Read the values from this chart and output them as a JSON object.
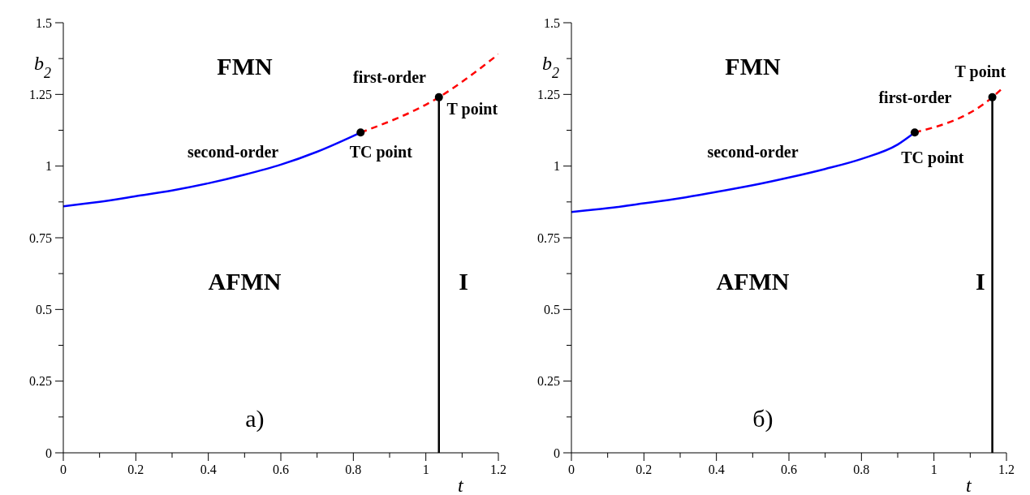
{
  "chart_data": [
    {
      "type": "line",
      "xlabel": "t",
      "ylabel": "b$_{2}$",
      "xlim": [
        0,
        1.2
      ],
      "ylim": [
        0,
        1.5
      ],
      "xticks": [
        0,
        {
          "value": 0.1,
          "label": null
        },
        0.2,
        {
          "value": 0.3,
          "label": null
        },
        0.4,
        {
          "value": 0.5,
          "label": null
        },
        0.6,
        {
          "value": 0.7,
          "label": null
        },
        0.8,
        {
          "value": 0.9,
          "label": null
        },
        1,
        {
          "value": 1.1,
          "label": null
        },
        1.2
      ],
      "yticks": [
        0,
        {
          "value": 0.125,
          "label": null
        },
        0.25,
        {
          "value": 0.375,
          "label": null
        },
        0.5,
        {
          "value": 0.625,
          "label": null
        },
        0.75,
        {
          "value": 0.875,
          "label": null
        },
        1,
        {
          "value": 1.125,
          "label": null
        },
        1.25,
        {
          "value": 1.375,
          "label": null
        },
        1.5
      ],
      "grid": false,
      "series": [
        {
          "color": "#0000ff",
          "line_style": "solid",
          "x": [
            0,
            0.1,
            0.2,
            0.3,
            0.4,
            0.5,
            0.6,
            0.7,
            0.82
          ],
          "values": [
            0.86,
            0.875,
            0.895,
            0.915,
            0.94,
            0.97,
            1.005,
            1.05,
            1.117
          ]
        },
        {
          "color": "#ff0000",
          "line_style": "dashed",
          "x": [
            0.82,
            1.036,
            1.2
          ],
          "values": [
            1.117,
            1.24,
            1.39
          ]
        },
        {
          "color": "#000000",
          "line_style": "solid",
          "x": [
            1.036,
            1.036
          ],
          "values": [
            0,
            1.24
          ]
        },
        {
          "type": "scatter",
          "color": "#000000",
          "marker": "circle",
          "x": [
            0.82,
            1.036
          ],
          "values": [
            1.117,
            1.24
          ]
        }
      ],
      "annotations": [
        "FMN",
        "AFMN",
        "I",
        "second-order",
        "first-order",
        "TC point",
        "T point",
        "а)"
      ]
    },
    {
      "type": "line",
      "xlabel": "t",
      "ylabel": "b$_{2}$",
      "xlim": [
        0,
        1.2
      ],
      "ylim": [
        0,
        1.5
      ],
      "xticks": [
        0,
        {
          "value": 0.1,
          "label": null
        },
        0.2,
        {
          "value": 0.3,
          "label": null
        },
        0.4,
        {
          "value": 0.5,
          "label": null
        },
        0.6,
        {
          "value": 0.7,
          "label": null
        },
        0.8,
        {
          "value": 0.9,
          "label": null
        },
        1,
        {
          "value": 1.1,
          "label": null
        },
        1.2
      ],
      "yticks": [
        0,
        {
          "value": 0.125,
          "label": null
        },
        0.25,
        {
          "value": 0.375,
          "label": null
        },
        0.5,
        {
          "value": 0.625,
          "label": null
        },
        0.75,
        {
          "value": 0.875,
          "label": null
        },
        1,
        {
          "value": 1.125,
          "label": null
        },
        1.25,
        {
          "value": 1.375,
          "label": null
        },
        1.5
      ],
      "grid": false,
      "series": [
        {
          "color": "#0000ff",
          "line_style": "solid",
          "x": [
            0,
            0.1,
            0.2,
            0.3,
            0.4,
            0.5,
            0.6,
            0.7,
            0.8,
            0.9,
            0.947
          ],
          "values": [
            0.84,
            0.853,
            0.87,
            0.888,
            0.91,
            0.933,
            0.96,
            0.99,
            1.025,
            1.075,
            1.117
          ]
        },
        {
          "color": "#ff0000",
          "line_style": "dashed",
          "x": [
            0.947,
            1.161,
            1.19
          ],
          "values": [
            1.117,
            1.24,
            1.273
          ]
        },
        {
          "color": "#000000",
          "line_style": "solid",
          "x": [
            1.161,
            1.161
          ],
          "values": [
            0,
            1.24
          ]
        },
        {
          "type": "scatter",
          "color": "#000000",
          "marker": "circle",
          "x": [
            0.947,
            1.161
          ],
          "values": [
            1.117,
            1.24
          ]
        }
      ],
      "annotations": [
        "FMN",
        "AFMN",
        "I",
        "second-order",
        "first-order",
        "TC point",
        "T point",
        "б)"
      ]
    }
  ]
}
